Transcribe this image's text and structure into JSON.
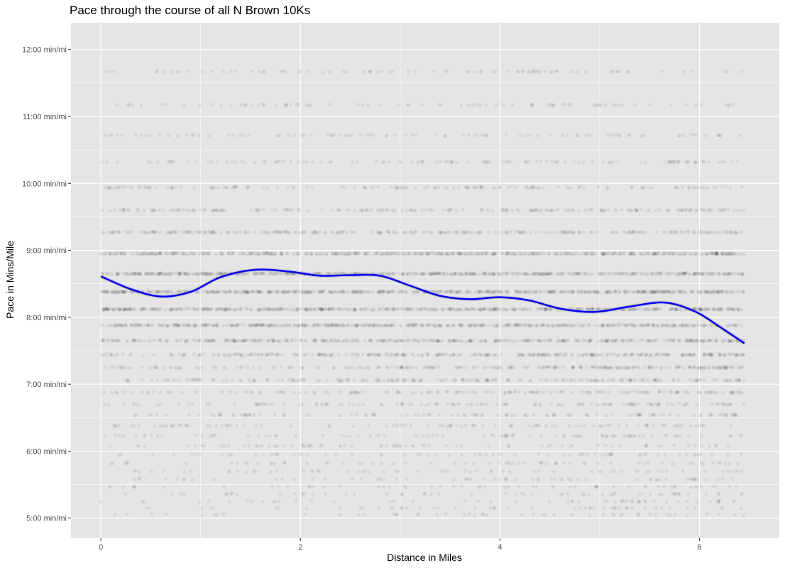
{
  "chart_data": {
    "type": "scatter",
    "title": "Pace through the course of all N Brown 10Ks",
    "xlabel": "Distance in Miles",
    "ylabel": "Pace in Mins/Mile",
    "xlim": [
      -0.3,
      6.8
    ],
    "ylim": [
      4.7,
      12.4
    ],
    "x_ticks": [
      0,
      2,
      4,
      6
    ],
    "x_tick_labels": [
      "0",
      "2",
      "4",
      "6"
    ],
    "y_ticks": [
      5,
      6,
      7,
      8,
      9,
      10,
      11,
      12
    ],
    "y_tick_labels": [
      "5:00 min/mi",
      "6:00 min/mi",
      "7:00 min/mi",
      "8:00 min/mi",
      "9:00 min/mi",
      "10:00 min/mi",
      "11:00 min/mi",
      "12:00 min/mi"
    ],
    "grid": true,
    "background": "#e5e5e5",
    "gridline_color": "#ffffff",
    "point_color": "#000000",
    "point_opacity": 0.06,
    "x_range": [
      0,
      6.45
    ],
    "pace_levels": [
      {
        "pace": 11.67,
        "density": 0.08
      },
      {
        "pace": 11.17,
        "density": 0.08
      },
      {
        "pace": 10.72,
        "density": 0.1
      },
      {
        "pace": 10.32,
        "density": 0.14
      },
      {
        "pace": 9.94,
        "density": 0.2
      },
      {
        "pace": 9.6,
        "density": 0.3
      },
      {
        "pace": 9.27,
        "density": 0.45
      },
      {
        "pace": 8.95,
        "density": 0.8
      },
      {
        "pace": 8.65,
        "density": 0.95
      },
      {
        "pace": 8.38,
        "density": 1.0
      },
      {
        "pace": 8.12,
        "density": 0.9
      },
      {
        "pace": 7.88,
        "density": 0.8
      },
      {
        "pace": 7.65,
        "density": 0.65
      },
      {
        "pace": 7.44,
        "density": 0.5
      },
      {
        "pace": 7.25,
        "density": 0.38
      },
      {
        "pace": 7.06,
        "density": 0.3
      },
      {
        "pace": 6.88,
        "density": 0.22
      },
      {
        "pace": 6.7,
        "density": 0.17
      },
      {
        "pace": 6.54,
        "density": 0.14
      },
      {
        "pace": 6.38,
        "density": 0.11
      },
      {
        "pace": 6.23,
        "density": 0.09
      },
      {
        "pace": 6.08,
        "density": 0.07
      },
      {
        "pace": 5.95,
        "density": 0.06
      },
      {
        "pace": 5.82,
        "density": 0.05
      },
      {
        "pace": 5.7,
        "density": 0.045
      },
      {
        "pace": 5.58,
        "density": 0.04
      },
      {
        "pace": 5.47,
        "density": 0.035
      },
      {
        "pace": 5.36,
        "density": 0.03
      },
      {
        "pace": 5.25,
        "density": 0.025
      },
      {
        "pace": 5.15,
        "density": 0.02
      },
      {
        "pace": 5.05,
        "density": 0.018
      }
    ],
    "smooth_line": {
      "color": "#0000ff",
      "x": [
        0,
        0.3,
        0.6,
        0.9,
        1.2,
        1.55,
        1.9,
        2.2,
        2.5,
        2.8,
        3.1,
        3.4,
        3.7,
        4.0,
        4.3,
        4.6,
        4.95,
        5.3,
        5.65,
        5.95,
        6.2,
        6.45
      ],
      "y": [
        8.61,
        8.42,
        8.31,
        8.38,
        8.6,
        8.71,
        8.68,
        8.62,
        8.63,
        8.62,
        8.47,
        8.32,
        8.27,
        8.3,
        8.25,
        8.13,
        8.08,
        8.16,
        8.22,
        8.09,
        7.86,
        7.61
      ]
    }
  }
}
